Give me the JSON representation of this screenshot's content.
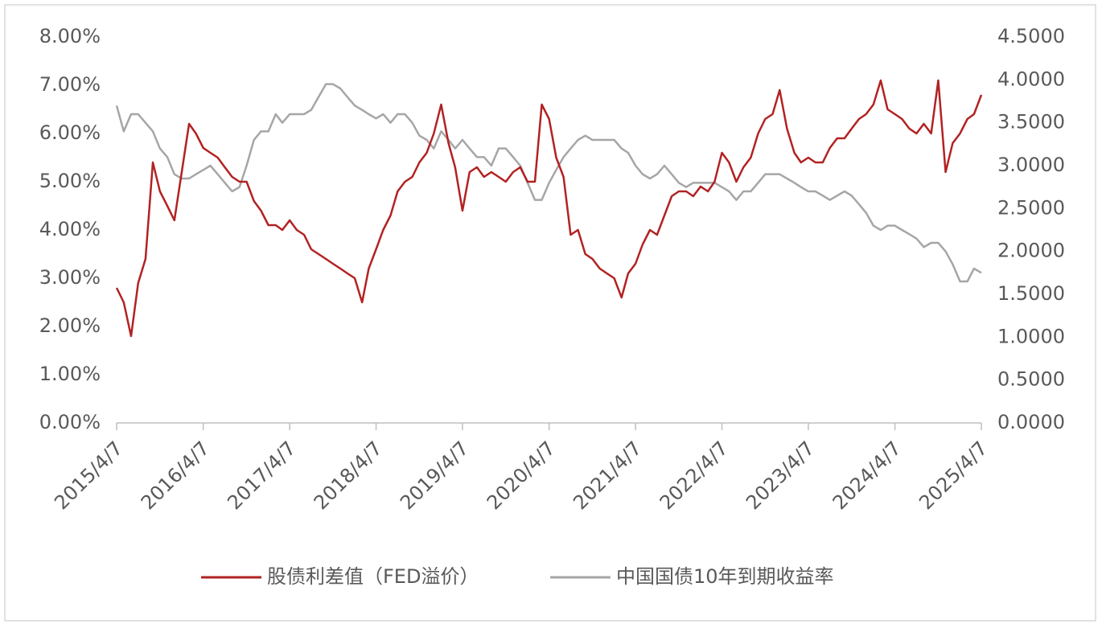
{
  "chart_data": {
    "type": "line",
    "x": [
      "2015/4/7",
      "2015/5/7",
      "2015/6/7",
      "2015/7/7",
      "2015/8/7",
      "2015/9/7",
      "2015/10/7",
      "2015/11/7",
      "2015/12/7",
      "2016/1/7",
      "2016/2/7",
      "2016/3/7",
      "2016/4/7",
      "2016/5/7",
      "2016/6/7",
      "2016/7/7",
      "2016/8/7",
      "2016/9/7",
      "2016/10/7",
      "2016/11/7",
      "2016/12/7",
      "2017/1/7",
      "2017/2/7",
      "2017/3/7",
      "2017/4/7",
      "2017/5/7",
      "2017/6/7",
      "2017/7/7",
      "2017/8/7",
      "2017/9/7",
      "2017/10/7",
      "2017/11/7",
      "2017/12/7",
      "2018/1/7",
      "2018/2/7",
      "2018/3/7",
      "2018/4/7",
      "2018/5/7",
      "2018/6/7",
      "2018/7/7",
      "2018/8/7",
      "2018/9/7",
      "2018/10/7",
      "2018/11/7",
      "2018/12/7",
      "2019/1/7",
      "2019/2/7",
      "2019/3/7",
      "2019/4/7",
      "2019/5/7",
      "2019/6/7",
      "2019/7/7",
      "2019/8/7",
      "2019/9/7",
      "2019/10/7",
      "2019/11/7",
      "2019/12/7",
      "2020/1/7",
      "2020/2/7",
      "2020/3/7",
      "2020/4/7",
      "2020/5/7",
      "2020/6/7",
      "2020/7/7",
      "2020/8/7",
      "2020/9/7",
      "2020/10/7",
      "2020/11/7",
      "2020/12/7",
      "2021/1/7",
      "2021/2/7",
      "2021/3/7",
      "2021/4/7",
      "2021/5/7",
      "2021/6/7",
      "2021/7/7",
      "2021/8/7",
      "2021/9/7",
      "2021/10/7",
      "2021/11/7",
      "2021/12/7",
      "2022/1/7",
      "2022/2/7",
      "2022/3/7",
      "2022/4/7",
      "2022/5/7",
      "2022/6/7",
      "2022/7/7",
      "2022/8/7",
      "2022/9/7",
      "2022/10/7",
      "2022/11/7",
      "2022/12/7",
      "2023/1/7",
      "2023/2/7",
      "2023/3/7",
      "2023/4/7",
      "2023/5/7",
      "2023/6/7",
      "2023/7/7",
      "2023/8/7",
      "2023/9/7",
      "2023/10/7",
      "2023/11/7",
      "2023/12/7",
      "2024/1/7",
      "2024/2/7",
      "2024/3/7",
      "2024/4/7",
      "2024/5/7",
      "2024/6/7",
      "2024/7/7",
      "2024/8/7",
      "2024/9/7",
      "2024/10/7",
      "2024/11/7",
      "2024/12/7",
      "2025/1/7",
      "2025/2/7",
      "2025/3/7",
      "2025/4/7"
    ],
    "series": [
      {
        "name": "股债利差值（FED溢价）",
        "color": "#b22222",
        "axis": "y",
        "values": [
          2.8,
          2.5,
          1.8,
          2.9,
          3.4,
          5.4,
          4.8,
          4.5,
          4.2,
          5.2,
          6.2,
          6.0,
          5.7,
          5.6,
          5.5,
          5.3,
          5.1,
          5.0,
          5.0,
          4.6,
          4.4,
          4.1,
          4.1,
          4.0,
          4.2,
          4.0,
          3.9,
          3.6,
          3.5,
          3.4,
          3.3,
          3.2,
          3.1,
          3.0,
          2.5,
          3.2,
          3.6,
          4.0,
          4.3,
          4.8,
          5.0,
          5.1,
          5.4,
          5.6,
          6.0,
          6.6,
          5.8,
          5.3,
          4.4,
          5.2,
          5.3,
          5.1,
          5.2,
          5.1,
          5.0,
          5.2,
          5.3,
          5.0,
          5.0,
          6.6,
          6.3,
          5.5,
          5.1,
          3.9,
          4.0,
          3.5,
          3.4,
          3.2,
          3.1,
          3.0,
          2.6,
          3.1,
          3.3,
          3.7,
          4.0,
          3.9,
          4.3,
          4.7,
          4.8,
          4.8,
          4.7,
          4.9,
          4.8,
          5.0,
          5.6,
          5.4,
          5.0,
          5.3,
          5.5,
          6.0,
          6.3,
          6.4,
          6.9,
          6.1,
          5.6,
          5.4,
          5.5,
          5.4,
          5.4,
          5.7,
          5.9,
          5.9,
          6.1,
          6.3,
          6.4,
          6.6,
          7.1,
          6.5,
          6.4,
          6.3,
          6.1,
          6.0,
          6.2,
          6.0,
          7.1,
          5.2,
          5.8,
          6.0,
          6.3,
          6.4,
          6.8
        ]
      },
      {
        "name": "中国国债10年到期收益率",
        "color": "#a6a6a6",
        "axis": "y2",
        "values": [
          3.7,
          3.4,
          3.6,
          3.6,
          3.5,
          3.4,
          3.2,
          3.1,
          2.9,
          2.85,
          2.85,
          2.9,
          2.95,
          3.0,
          2.9,
          2.8,
          2.7,
          2.75,
          3.0,
          3.3,
          3.4,
          3.4,
          3.6,
          3.5,
          3.6,
          3.6,
          3.6,
          3.65,
          3.8,
          3.95,
          3.95,
          3.9,
          3.8,
          3.7,
          3.65,
          3.6,
          3.55,
          3.6,
          3.5,
          3.6,
          3.6,
          3.5,
          3.35,
          3.3,
          3.2,
          3.4,
          3.3,
          3.2,
          3.3,
          3.2,
          3.1,
          3.1,
          3.0,
          3.2,
          3.2,
          3.1,
          3.0,
          2.8,
          2.6,
          2.6,
          2.8,
          2.95,
          3.1,
          3.2,
          3.3,
          3.35,
          3.3,
          3.3,
          3.3,
          3.3,
          3.2,
          3.15,
          3.0,
          2.9,
          2.85,
          2.9,
          3.0,
          2.9,
          2.8,
          2.75,
          2.8,
          2.8,
          2.8,
          2.8,
          2.75,
          2.7,
          2.6,
          2.7,
          2.7,
          2.8,
          2.9,
          2.9,
          2.9,
          2.85,
          2.8,
          2.75,
          2.7,
          2.7,
          2.65,
          2.6,
          2.65,
          2.7,
          2.65,
          2.55,
          2.45,
          2.3,
          2.25,
          2.3,
          2.3,
          2.25,
          2.2,
          2.15,
          2.05,
          2.1,
          2.1,
          2.0,
          1.85,
          1.65,
          1.65,
          1.8,
          1.75
        ]
      }
    ],
    "xlim": [
      "2015/4/7",
      "2025/4/7"
    ],
    "xticks": [
      "2015/4/7",
      "2016/4/7",
      "2017/4/7",
      "2018/4/7",
      "2019/4/7",
      "2020/4/7",
      "2021/4/7",
      "2022/4/7",
      "2023/4/7",
      "2024/4/7",
      "2025/4/7"
    ],
    "ylim": [
      0,
      8
    ],
    "yticks": [
      {
        "value": 0,
        "label": "0.00%"
      },
      {
        "value": 1,
        "label": "1.00%"
      },
      {
        "value": 2,
        "label": "2.00%"
      },
      {
        "value": 3,
        "label": "3.00%"
      },
      {
        "value": 4,
        "label": "4.00%"
      },
      {
        "value": 5,
        "label": "5.00%"
      },
      {
        "value": 6,
        "label": "6.00%"
      },
      {
        "value": 7,
        "label": "7.00%"
      },
      {
        "value": 8,
        "label": "8.00%"
      }
    ],
    "y2lim": [
      0,
      4.5
    ],
    "y2ticks": [
      {
        "value": 0,
        "label": "0.0000"
      },
      {
        "value": 0.5,
        "label": "0.5000"
      },
      {
        "value": 1,
        "label": "1.0000"
      },
      {
        "value": 1.5,
        "label": "1.5000"
      },
      {
        "value": 2,
        "label": "2.0000"
      },
      {
        "value": 2.5,
        "label": "2.5000"
      },
      {
        "value": 3,
        "label": "3.0000"
      },
      {
        "value": 3.5,
        "label": "3.5000"
      },
      {
        "value": 4,
        "label": "4.0000"
      },
      {
        "value": 4.5,
        "label": "4.5000"
      }
    ],
    "grid": false,
    "legend": "bottom"
  }
}
